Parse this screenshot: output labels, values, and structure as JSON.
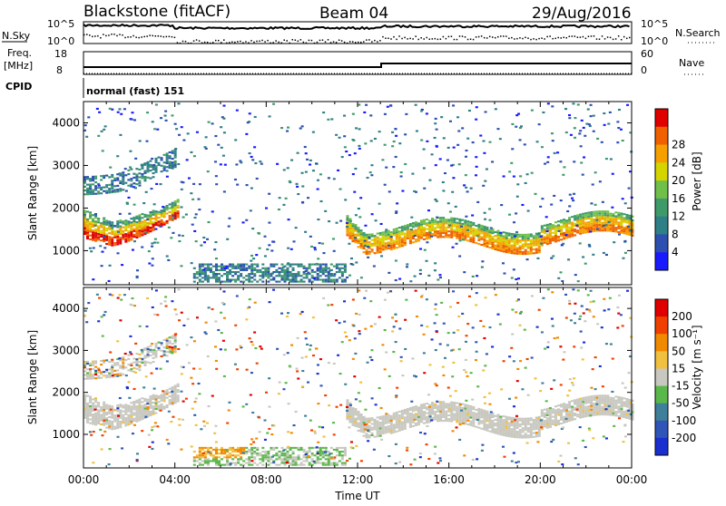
{
  "header": {
    "station": "Blackstone (fitACF)",
    "beam": "Beam 04",
    "date": "29/Aug/2016"
  },
  "top_panels": {
    "nsky_label": "N.Sky",
    "nsky_max": "10^5",
    "nsky_min": "10^0",
    "nsearch_label": "N.Search",
    "nsearch_max": "10^5",
    "nsearch_min": "10^0",
    "freq_label": "Freq.",
    "freq_unit": "[MHz]",
    "freq_max": "18",
    "freq_min": "8",
    "nave_label": "Nave",
    "nave_max": "60",
    "nave_min": "0",
    "cpid_label": "CPID",
    "cpid_value": "normal (fast) 151"
  },
  "chart_data": [
    {
      "type": "heatmap",
      "name": "power-panel",
      "ylabel": "Slant Range [km]",
      "yticks": [
        1000,
        2000,
        3000,
        4000
      ],
      "ylim": [
        200,
        4500
      ],
      "xlim": [
        0,
        24
      ],
      "colorbar": {
        "label": "Power [dB]",
        "ticks": [
          "4",
          "8",
          "12",
          "16",
          "20",
          "24",
          "28"
        ],
        "colors": [
          "#1a1aff",
          "#2c4fb0",
          "#2f7f86",
          "#3f9a6a",
          "#6fbf4a",
          "#d4d400",
          "#f5a000",
          "#f06000",
          "#e00000"
        ]
      }
    },
    {
      "type": "heatmap",
      "name": "velocity-panel",
      "ylabel": "Slant Range [km]",
      "yticks": [
        1000,
        2000,
        3000,
        4000
      ],
      "ylim": [
        200,
        4500
      ],
      "xlim": [
        0,
        24
      ],
      "xlabel": "Time UT",
      "xticks": [
        "00:00",
        "04:00",
        "08:00",
        "12:00",
        "16:00",
        "20:00",
        "00:00"
      ],
      "colorbar": {
        "label": "Velocity [m s⁻¹]",
        "ticks": [
          "200",
          "100",
          "50",
          "15",
          "-15",
          "-50",
          "-100",
          "-200"
        ],
        "colors": [
          "#1a2fd0",
          "#2f55b8",
          "#3f7f9a",
          "#5ab84a",
          "#c8c8c0",
          "#f0c040",
          "#f08a00",
          "#f04000",
          "#e00000"
        ]
      }
    }
  ]
}
